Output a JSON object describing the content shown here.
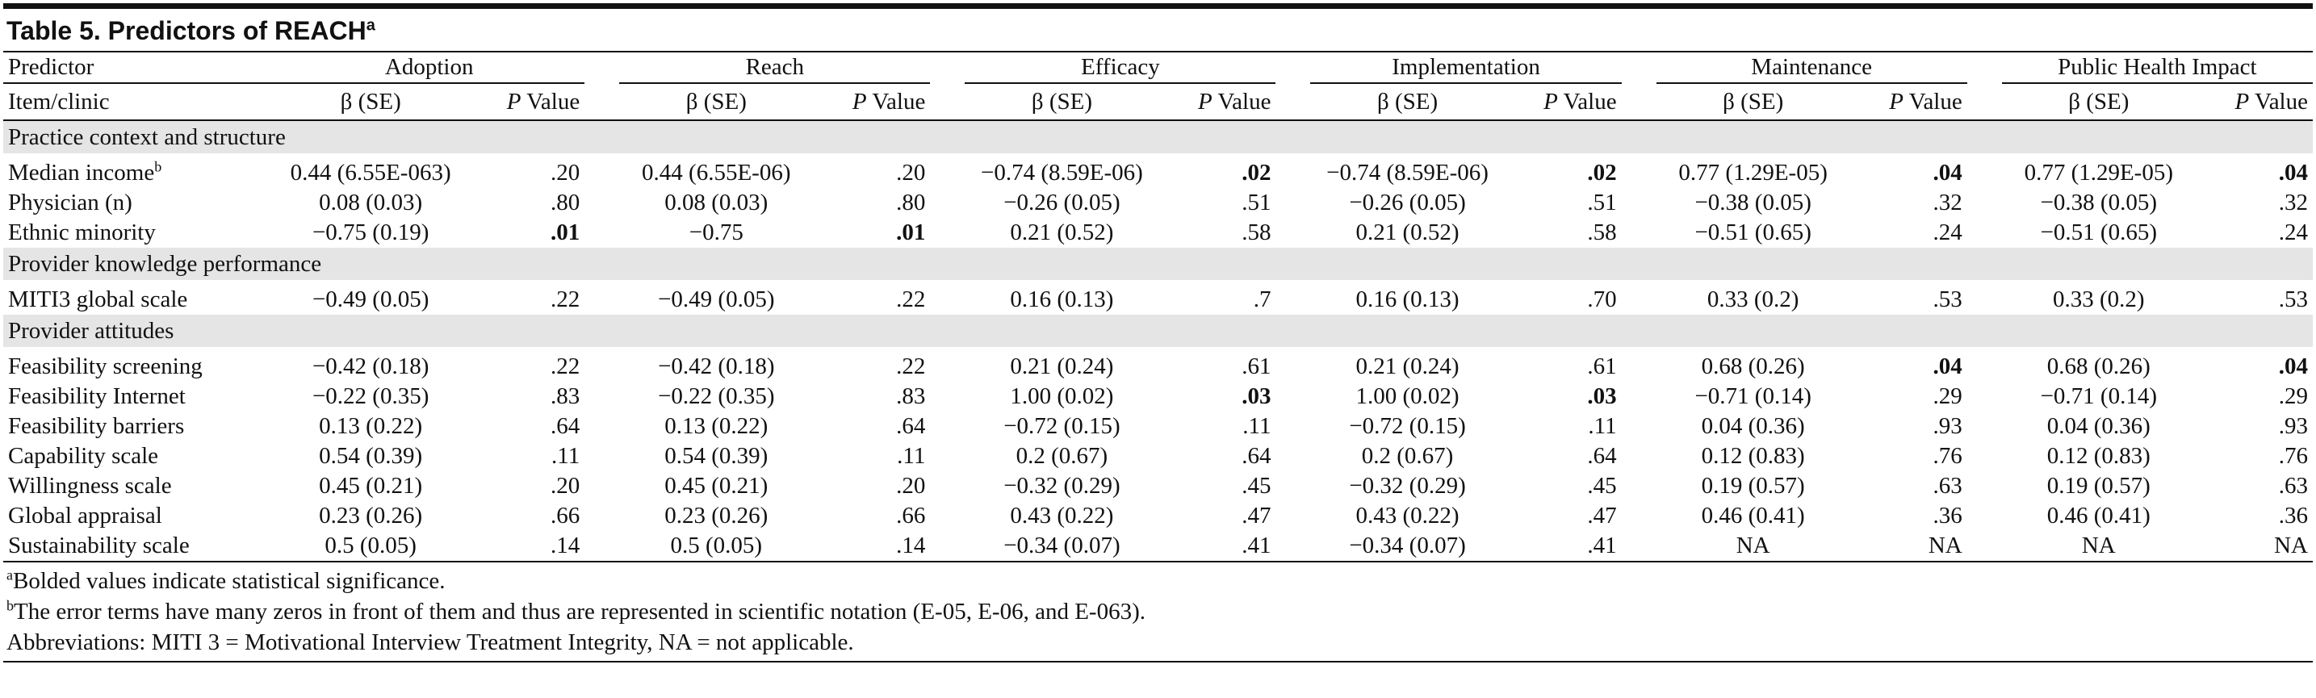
{
  "title": "Table 5. Predictors of REACH",
  "title_note": "a",
  "header": {
    "predictor": "Predictor",
    "item": "Item/clinic",
    "groups": [
      "Adoption",
      "Reach",
      "Efficacy",
      "Implementation",
      "Maintenance",
      "Public Health Impact"
    ],
    "beta": "β (SE)",
    "p_italic": "P",
    "p_rest": " Value"
  },
  "sections": [
    {
      "title": "Practice context and structure",
      "rows": [
        {
          "label": "Median income",
          "note": "b",
          "cells": [
            "0.44 (6.55E-063)",
            ".20",
            "0.44 (6.55E-06)",
            ".20",
            "−0.74 (8.59E-06)",
            ".02",
            "−0.74 (8.59E-06)",
            ".02",
            "0.77 (1.29E-05)",
            ".04",
            "0.77 (1.29E-05)",
            ".04"
          ],
          "bold_cells": [
            5,
            7,
            9,
            11
          ]
        },
        {
          "label": "Physician (n)",
          "cells": [
            "0.08 (0.03)",
            ".80",
            "0.08 (0.03)",
            ".80",
            "−0.26 (0.05)",
            ".51",
            "−0.26 (0.05)",
            ".51",
            "−0.38 (0.05)",
            ".32",
            "−0.38 (0.05)",
            ".32"
          ],
          "bold_cells": []
        },
        {
          "label": "Ethnic minority",
          "cells": [
            "−0.75 (0.19)",
            ".01",
            "−0.75",
            ".01",
            "0.21 (0.52)",
            ".58",
            "0.21 (0.52)",
            ".58",
            "−0.51 (0.65)",
            ".24",
            "−0.51 (0.65)",
            ".24"
          ],
          "bold_cells": [
            1,
            3
          ]
        }
      ]
    },
    {
      "title": "Provider knowledge performance",
      "rows": [
        {
          "label": "MITI3 global scale",
          "cells": [
            "−0.49 (0.05)",
            ".22",
            "−0.49 (0.05)",
            ".22",
            "0.16 (0.13)",
            ".7",
            "0.16 (0.13)",
            ".70",
            "0.33 (0.2)",
            ".53",
            "0.33 (0.2)",
            ".53"
          ],
          "bold_cells": []
        }
      ]
    },
    {
      "title": "Provider attitudes",
      "rows": [
        {
          "label": "Feasibility screening",
          "cells": [
            "−0.42 (0.18)",
            ".22",
            "−0.42 (0.18)",
            ".22",
            "0.21 (0.24)",
            ".61",
            "0.21 (0.24)",
            ".61",
            "0.68 (0.26)",
            ".04",
            "0.68 (0.26)",
            ".04"
          ],
          "bold_cells": [
            9,
            11
          ]
        },
        {
          "label": "Feasibility Internet",
          "cells": [
            "−0.22 (0.35)",
            ".83",
            "−0.22 (0.35)",
            ".83",
            "1.00 (0.02)",
            ".03",
            "1.00 (0.02)",
            ".03",
            "−0.71 (0.14)",
            ".29",
            "−0.71 (0.14)",
            ".29"
          ],
          "bold_cells": [
            5,
            7
          ]
        },
        {
          "label": "Feasibility barriers",
          "cells": [
            "0.13 (0.22)",
            ".64",
            "0.13 (0.22)",
            ".64",
            "−0.72 (0.15)",
            ".11",
            "−0.72 (0.15)",
            ".11",
            "0.04 (0.36)",
            ".93",
            "0.04 (0.36)",
            ".93"
          ],
          "bold_cells": []
        },
        {
          "label": "Capability scale",
          "cells": [
            "0.54 (0.39)",
            ".11",
            "0.54 (0.39)",
            ".11",
            "0.2 (0.67)",
            ".64",
            "0.2 (0.67)",
            ".64",
            "0.12 (0.83)",
            ".76",
            "0.12 (0.83)",
            ".76"
          ],
          "bold_cells": []
        },
        {
          "label": "Willingness scale",
          "cells": [
            "0.45 (0.21)",
            ".20",
            "0.45 (0.21)",
            ".20",
            "−0.32 (0.29)",
            ".45",
            "−0.32 (0.29)",
            ".45",
            "0.19 (0.57)",
            ".63",
            "0.19 (0.57)",
            ".63"
          ],
          "bold_cells": []
        },
        {
          "label": "Global appraisal",
          "cells": [
            "0.23 (0.26)",
            ".66",
            "0.23 (0.26)",
            ".66",
            "0.43 (0.22)",
            ".47",
            "0.43 (0.22)",
            ".47",
            "0.46 (0.41)",
            ".36",
            "0.46 (0.41)",
            ".36"
          ],
          "bold_cells": []
        },
        {
          "label": "Sustainability scale",
          "cells": [
            "0.5 (0.05)",
            ".14",
            "0.5 (0.05)",
            ".14",
            "−0.34 (0.07)",
            ".41",
            "−0.34 (0.07)",
            ".41",
            "NA",
            "NA",
            "NA",
            "NA"
          ],
          "bold_cells": []
        }
      ]
    }
  ],
  "footnotes": [
    {
      "mark": "a",
      "text": "Bolded values indicate statistical significance."
    },
    {
      "mark": "b",
      "text": "The error terms have many zeros in front of them and thus are represented in scientific notation (E-05, E-06, and E-063)."
    }
  ],
  "abbreviations": "Abbreviations: MITI 3 = Motivational Interview Treatment Integrity, NA = not applicable."
}
